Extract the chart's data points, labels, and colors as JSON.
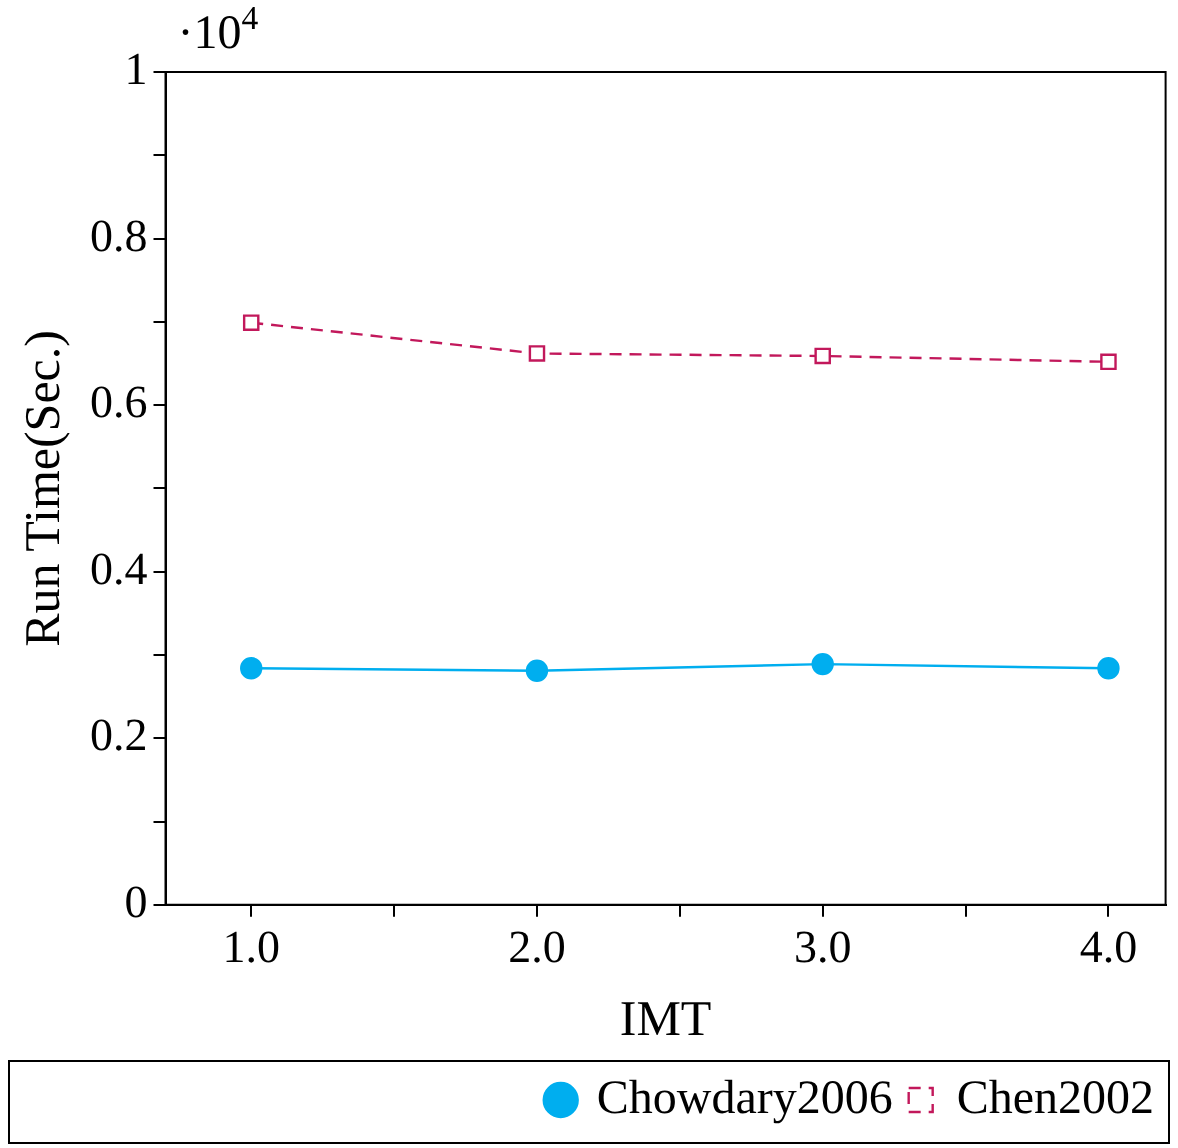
{
  "chart_data": {
    "type": "line",
    "xlabel": "IMT",
    "ylabel": "Run Time(Sec.)",
    "annotations": [
      "·10$^{4}$"
    ],
    "x": [
      1,
      2,
      3,
      4
    ],
    "xlim": [
      0.7,
      4.2
    ],
    "xticks": [
      {
        "value": 1,
        "label": "1.0"
      },
      {
        "value": 1.5,
        "label": null
      },
      {
        "value": 2,
        "label": "2.0"
      },
      {
        "value": 2.5,
        "label": null
      },
      {
        "value": 3,
        "label": "3.0"
      },
      {
        "value": 3.5,
        "label": null
      },
      {
        "value": 4,
        "label": "4.0"
      }
    ],
    "ylim": [
      0,
      1
    ],
    "yticks": [
      0,
      {
        "value": 0.1,
        "label": null
      },
      0.2,
      {
        "value": 0.3,
        "label": null
      },
      0.4,
      {
        "value": 0.5,
        "label": null
      },
      0.6,
      {
        "value": 0.7,
        "label": null
      },
      0.8,
      {
        "value": 0.9,
        "label": null
      },
      1
    ],
    "legend": "bottom",
    "grid": false,
    "series": [
      {
        "name": "Chowdary2006",
        "color": "#00aeef",
        "values": [
          0.284,
          0.281,
          0.289,
          0.284
        ],
        "marker": "circle",
        "line_style": "solid"
      },
      {
        "name": "Chen2002",
        "color": "#c2185b",
        "values": [
          0.699,
          0.662,
          0.659,
          0.652
        ],
        "marker": "square",
        "line_style": "dashed"
      }
    ]
  }
}
